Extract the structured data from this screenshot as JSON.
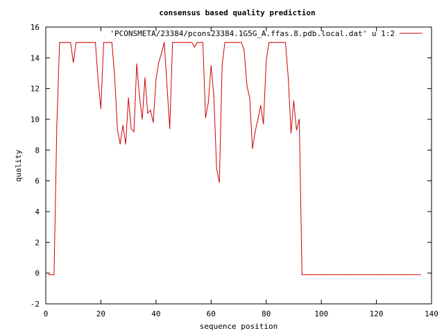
{
  "chart_data": {
    "type": "line",
    "title": "consensus based quality prediction",
    "xlabel": "sequence position",
    "ylabel": "quality",
    "xlim": [
      0,
      140
    ],
    "ylim": [
      -2,
      16
    ],
    "xticks": [
      0,
      20,
      40,
      60,
      80,
      100,
      120,
      140
    ],
    "yticks": [
      -2,
      0,
      2,
      4,
      6,
      8,
      10,
      12,
      14,
      16
    ],
    "grid": false,
    "legend_position": "top-right",
    "series": [
      {
        "name": "'PCONSMETA/23384/pcons23384.1G5G_A.ffas.8.pdb.local.dat' u 1:2",
        "color": "#cc0000",
        "x": [
          1,
          2,
          3,
          4,
          5,
          6,
          7,
          8,
          9,
          10,
          11,
          12,
          13,
          14,
          15,
          16,
          17,
          18,
          19,
          20,
          21,
          22,
          23,
          24,
          25,
          26,
          27,
          28,
          29,
          30,
          31,
          32,
          33,
          34,
          35,
          36,
          37,
          38,
          39,
          40,
          41,
          42,
          43,
          44,
          45,
          46,
          47,
          48,
          49,
          50,
          51,
          52,
          53,
          54,
          55,
          56,
          57,
          58,
          59,
          60,
          61,
          62,
          63,
          64,
          65,
          66,
          67,
          68,
          69,
          70,
          71,
          72,
          73,
          74,
          75,
          76,
          77,
          78,
          79,
          80,
          81,
          82,
          83,
          84,
          85,
          86,
          87,
          88,
          89,
          90,
          91,
          92,
          93,
          94,
          95,
          100,
          110,
          120,
          130,
          136
        ],
        "y": [
          -0.1,
          -0.1,
          -0.1,
          9.6,
          15,
          15,
          15,
          15,
          15,
          13.7,
          15,
          15,
          15,
          15,
          15,
          15,
          15,
          15,
          12.5,
          10.7,
          15,
          15,
          15,
          15,
          12.8,
          9.3,
          8.4,
          9.6,
          8.4,
          11.4,
          9.4,
          9.2,
          13.6,
          11.5,
          10,
          12.7,
          10.4,
          10.6,
          9.8,
          12.6,
          13.7,
          14.3,
          15,
          12.2,
          9.4,
          15,
          15,
          15,
          15,
          15,
          15,
          15,
          15,
          14.7,
          15,
          15,
          15,
          10.1,
          11.1,
          13.5,
          11.5,
          6.8,
          5.9,
          13.5,
          15,
          15,
          15,
          15,
          15,
          15,
          15,
          14.5,
          12.2,
          11.4,
          8.1,
          9.2,
          10,
          10.9,
          9.7,
          13.8,
          15,
          15,
          15,
          15,
          15,
          15,
          15,
          12.7,
          9.1,
          11.2,
          9.3,
          10,
          -0.1,
          -0.1,
          -0.1,
          -0.1,
          -0.1,
          -0.1,
          -0.1,
          -0.1
        ]
      }
    ]
  }
}
